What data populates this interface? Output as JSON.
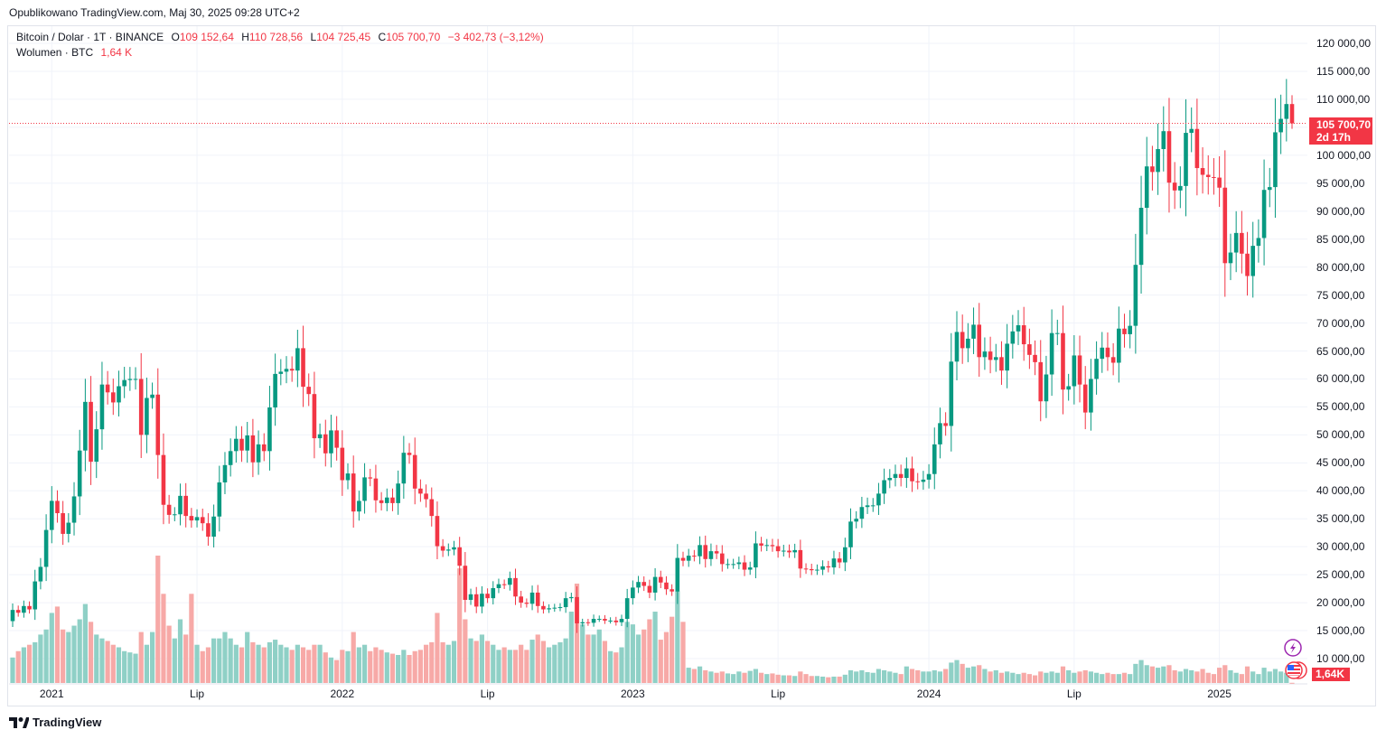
{
  "header": {
    "published": "Opublikowano TradingView.com, Maj 30, 2025 09:28 UTC+2"
  },
  "legend": {
    "symbol": "Bitcoin / Dolar · 1T · BINANCE",
    "o_label": "O",
    "o_value": "109 152,64",
    "h_label": "H",
    "h_value": "110 728,56",
    "l_label": "L",
    "l_value": "104 725,45",
    "c_label": "C",
    "c_value": "105 700,70",
    "change": "−3 402,73 (−3,12%)",
    "volume_label": "Wolumen · BTC",
    "volume_value": "1,64 K"
  },
  "price_label": {
    "price": "105 700,70",
    "countdown": "2d 17h"
  },
  "volume_label_box": "1,64K",
  "footer": {
    "brand": "TradingView"
  },
  "colors": {
    "up": "#089981",
    "down": "#f23645",
    "up_vol": "#8fd0c6",
    "down_vol": "#f7a9a7",
    "grid": "#f0f3fa"
  },
  "chart_data": {
    "type": "candlestick",
    "title": "Bitcoin / Dolar · 1T · BINANCE",
    "interval": "1 week",
    "first_open": 16.7,
    "units": "thousand USD",
    "close": [
      18.7,
      18.2,
      19.4,
      18.8,
      23.8,
      26.4,
      33.0,
      38.2,
      36.0,
      32.3,
      34.3,
      39.0,
      47.2,
      55.9,
      45.2,
      51.0,
      59.0,
      57.6,
      55.8,
      58.7,
      59.8,
      60.0,
      60.0,
      50.0,
      56.6,
      57.2,
      46.4,
      37.5,
      35.7,
      35.8,
      39.1,
      35.5,
      34.7,
      35.3,
      34.2,
      31.8,
      35.4,
      41.5,
      44.6,
      47.1,
      49.3,
      47.2,
      49.9,
      45.1,
      48.3,
      47.1,
      54.9,
      60.9,
      61.3,
      61.8,
      61.5,
      65.5,
      58.6,
      57.3,
      49.4,
      50.1,
      46.7,
      50.8,
      47.7,
      41.9,
      43.1,
      36.3,
      38.2,
      42.4,
      42.2,
      38.3,
      37.8,
      38.8,
      37.8,
      41.3,
      46.8,
      46.4,
      40.4,
      39.5,
      38.5,
      35.5,
      30.1,
      29.3,
      29.5,
      29.9,
      26.6,
      20.5,
      21.5,
      19.3,
      21.6,
      20.8,
      22.6,
      23.3,
      23.2,
      24.4,
      21.1,
      20.0,
      19.8,
      21.8,
      19.4,
      18.8,
      19.0,
      19.1,
      19.2,
      20.8,
      21.0,
      16.3,
      16.5,
      16.4,
      17.1,
      17.1,
      16.8,
      16.8,
      16.5,
      17.1,
      20.8,
      22.7,
      23.7,
      23.0,
      21.8,
      24.6,
      23.6,
      22.4,
      22.0,
      28.0,
      27.5,
      28.4,
      28.3,
      30.3,
      27.8,
      29.2,
      28.8,
      26.9,
      26.9,
      26.9,
      27.2,
      25.9,
      26.3,
      30.6,
      30.2,
      30.3,
      30.1,
      29.2,
      29.3,
      29.0,
      29.4,
      26.1,
      26.0,
      25.8,
      25.9,
      26.5,
      26.3,
      27.9,
      27.2,
      29.9,
      34.5,
      35.0,
      37.1,
      37.4,
      37.4,
      39.5,
      41.9,
      42.3,
      43.0,
      42.3,
      44.0,
      41.7,
      41.6,
      42.0,
      43.0,
      48.3,
      52.1,
      51.6,
      63.1,
      68.4,
      65.5,
      67.2,
      69.7,
      63.9,
      64.9,
      63.4,
      63.9,
      61.5,
      66.3,
      68.5,
      69.6,
      66.2,
      64.3,
      63.0,
      56.0,
      60.8,
      68.2,
      68.2,
      58.1,
      58.7,
      64.2,
      59.0,
      54.0,
      60.0,
      63.6,
      65.6,
      63.9,
      62.9,
      69.0,
      68.0,
      69.5,
      80.4,
      90.6,
      98.0,
      97.0,
      101.1,
      104.3,
      95.1,
      93.7,
      94.5,
      104.0,
      104.7,
      97.7,
      96.5,
      96.1,
      96.0,
      94.2,
      80.7,
      82.6,
      86.1,
      82.4,
      78.4,
      83.8,
      85.2,
      93.8,
      94.3,
      104.1,
      106.5,
      109.15,
      105.7
    ],
    "volume_k": [
      200,
      250,
      280,
      300,
      320,
      380,
      420,
      550,
      600,
      420,
      400,
      450,
      500,
      620,
      480,
      380,
      350,
      330,
      300,
      280,
      250,
      240,
      230,
      400,
      300,
      400,
      1000,
      700,
      450,
      350,
      500,
      380,
      700,
      300,
      250,
      280,
      350,
      350,
      400,
      350,
      300,
      280,
      400,
      320,
      300,
      280,
      320,
      340,
      300,
      280,
      260,
      300,
      280,
      260,
      300,
      300,
      240,
      200,
      180,
      260,
      250,
      400,
      280,
      300,
      250,
      280,
      260,
      240,
      230,
      220,
      260,
      220,
      250,
      260,
      300,
      320,
      550,
      320,
      300,
      330,
      900,
      500,
      350,
      330,
      380,
      330,
      300,
      260,
      280,
      260,
      260,
      300,
      260,
      340,
      380,
      330,
      280,
      300,
      320,
      350,
      560,
      780,
      460,
      380,
      380,
      420,
      330,
      250,
      240,
      280,
      480,
      460,
      380,
      420,
      500,
      560,
      340,
      400,
      520,
      720,
      480,
      120,
      110,
      130,
      100,
      90,
      80,
      90,
      75,
      70,
      90,
      80,
      95,
      110,
      80,
      70,
      75,
      65,
      60,
      60,
      55,
      90,
      70,
      55,
      55,
      50,
      45,
      50,
      50,
      65,
      100,
      90,
      100,
      85,
      80,
      110,
      100,
      90,
      80,
      70,
      130,
      110,
      100,
      90,
      90,
      100,
      90,
      110,
      160,
      180,
      150,
      120,
      130,
      140,
      110,
      90,
      100,
      80,
      90,
      80,
      70,
      80,
      70,
      60,
      90,
      80,
      90,
      80,
      130,
      100,
      80,
      90,
      100,
      90,
      80,
      70,
      80,
      70,
      70,
      80,
      70,
      150,
      180,
      140,
      130,
      120,
      130,
      140,
      100,
      90,
      110,
      100,
      90,
      110,
      80,
      70,
      120,
      140,
      100,
      80,
      70,
      130,
      90,
      70,
      120,
      90,
      110,
      90,
      80,
      1.64
    ],
    "last_candle": {
      "open": 109152.64,
      "high": 110728.56,
      "low": 104725.45,
      "close": 105700.7
    },
    "current_price": 105700.7,
    "ylim": [
      10000,
      120000
    ],
    "yticks": [
      120000,
      115000,
      110000,
      105000,
      100000,
      95000,
      90000,
      85000,
      80000,
      75000,
      70000,
      65000,
      60000,
      55000,
      50000,
      45000,
      40000,
      35000,
      30000,
      25000,
      20000,
      15000,
      10000
    ],
    "ytick_labels": [
      "120 000,00",
      "115 000,00",
      "110 000,00",
      "",
      "100 000,00",
      "95 000,00",
      "90 000,00",
      "85 000,00",
      "80 000,00",
      "75 000,00",
      "70 000,00",
      "65 000,00",
      "60 000,00",
      "55 000,00",
      "50 000,00",
      "45 000,00",
      "40 000,00",
      "35 000,00",
      "30 000,00",
      "25 000,00",
      "20 000,00",
      "15 000,00",
      "10 000,00"
    ],
    "xtick_labels": [
      "2021",
      "Lip",
      "2022",
      "Lip",
      "2023",
      "Lip",
      "2024",
      "Lip",
      "2025"
    ],
    "xtick_week_index": [
      7,
      33,
      59,
      85,
      111,
      137,
      164,
      190,
      216
    ],
    "grid": true
  }
}
